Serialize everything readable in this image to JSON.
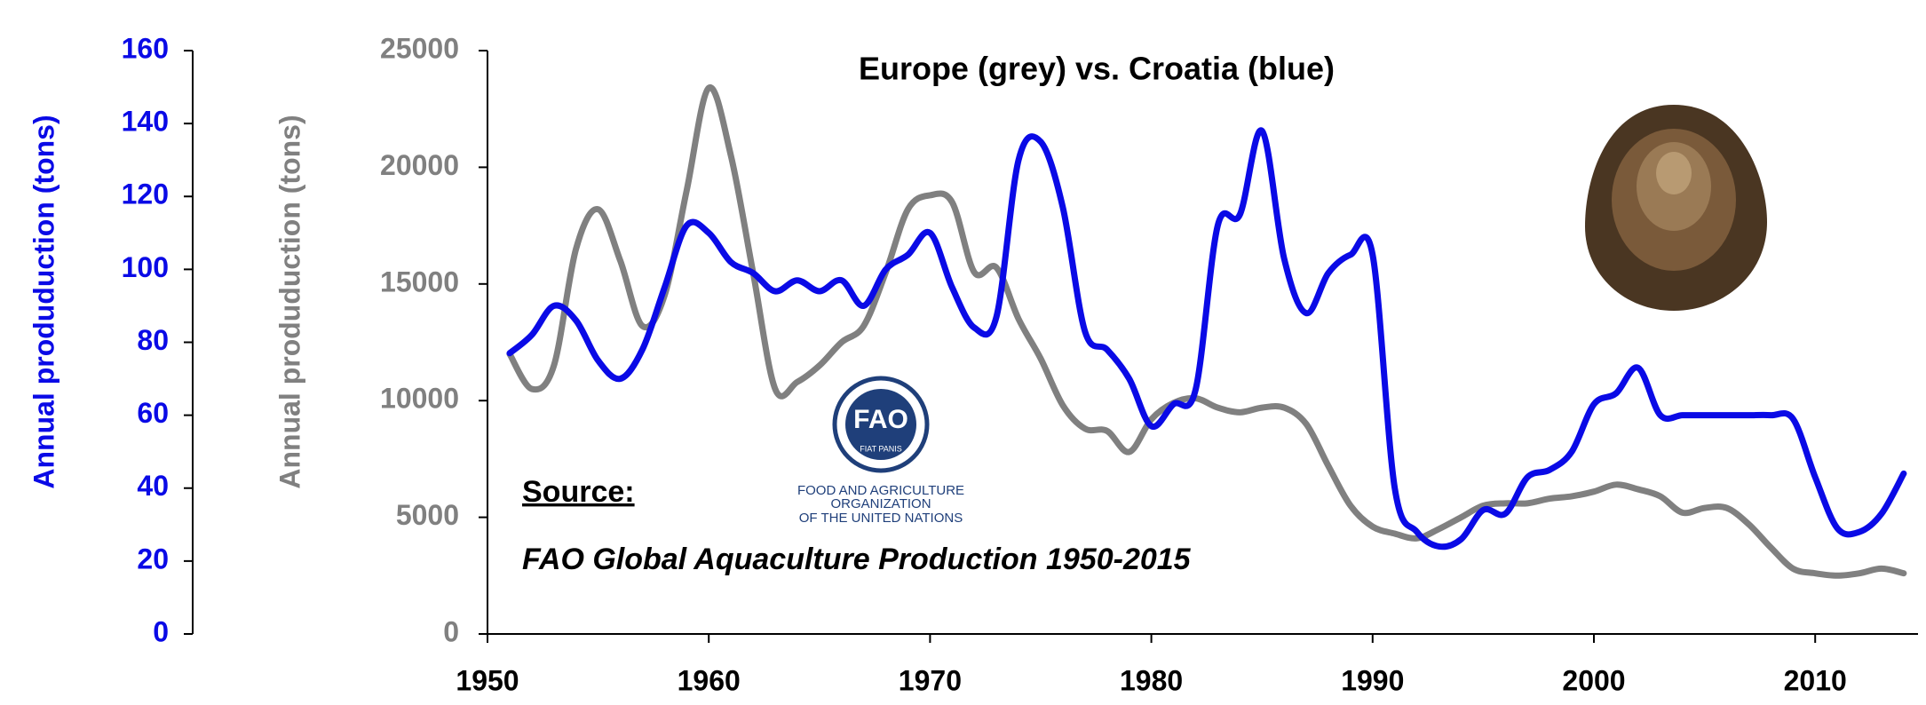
{
  "chart_data": {
    "type": "line",
    "title": "Europe (grey) vs. Croatia (blue)",
    "ylabel": "Annual produduction (tons)",
    "y2label": "Annual produduction (tons)",
    "annotations": [
      "Source:",
      "FAO Global Aquaculture Production 1950-2015",
      "FAO",
      "FIAT PANIS",
      "FOOD AND AGRICULTURE",
      "ORGANIZATION",
      "OF THE UNITED NATIONS"
    ],
    "x": [
      1951,
      1952,
      1953,
      1954,
      1955,
      1956,
      1957,
      1958,
      1959,
      1960,
      1961,
      1962,
      1963,
      1964,
      1965,
      1966,
      1967,
      1968,
      1969,
      1970,
      1971,
      1972,
      1973,
      1974,
      1975,
      1976,
      1977,
      1978,
      1979,
      1980,
      1981,
      1982,
      1983,
      1984,
      1985,
      1986,
      1987,
      1988,
      1989,
      1990,
      1991,
      1992,
      1993,
      1994,
      1995,
      1996,
      1997,
      1998,
      1999,
      2000,
      2001,
      2002,
      2003,
      2004,
      2005,
      2006,
      2007,
      2008,
      2009,
      2010,
      2011,
      2012,
      2013,
      2014
    ],
    "xlim": [
      1950,
      2014.5
    ],
    "xticks": [
      1950,
      1960,
      1970,
      1980,
      1990,
      2000,
      2010
    ],
    "ylim": [
      0,
      25000
    ],
    "yticks": [
      0,
      5000,
      10000,
      15000,
      20000,
      25000
    ],
    "y2lim": [
      0,
      160
    ],
    "y2ticks": [
      0,
      20,
      40,
      60,
      80,
      100,
      120,
      140,
      160
    ],
    "series": [
      {
        "color": "#808080",
        "values": [
          12000,
          10500,
          11500,
          16500,
          18200,
          16000,
          13200,
          14500,
          19000,
          23400,
          20500,
          15500,
          10500,
          10800,
          11500,
          12500,
          13200,
          15500,
          18200,
          18800,
          18500,
          15500,
          15700,
          13500,
          11800,
          9800,
          8800,
          8700,
          7800,
          9200,
          9900,
          10100,
          9700,
          9500,
          9700,
          9700,
          9000,
          7200,
          5500,
          4600,
          4300,
          4100,
          4500,
          5000,
          5500,
          5600,
          5600,
          5800,
          5900,
          6100,
          6400,
          6200,
          5900,
          5200,
          5400,
          5400,
          4700,
          3700,
          2800,
          2600,
          2500,
          2600,
          2800,
          2600
        ]
      },
      {
        "color": "#0a0ae6",
        "axis": "y2",
        "values": [
          77,
          82,
          90,
          86,
          75,
          70,
          78,
          95,
          112,
          110,
          102,
          99,
          94,
          97,
          94,
          97,
          90,
          100,
          104,
          110,
          95,
          84,
          87,
          130,
          135,
          117,
          83,
          78,
          70,
          57,
          63,
          67,
          112,
          115,
          138,
          103,
          88,
          99,
          104,
          104,
          40,
          28,
          24,
          26,
          34,
          33,
          43,
          45,
          50,
          63,
          66,
          73,
          60,
          60,
          60,
          60,
          60,
          60,
          59,
          43,
          29,
          28,
          33,
          44
        ]
      }
    ]
  }
}
